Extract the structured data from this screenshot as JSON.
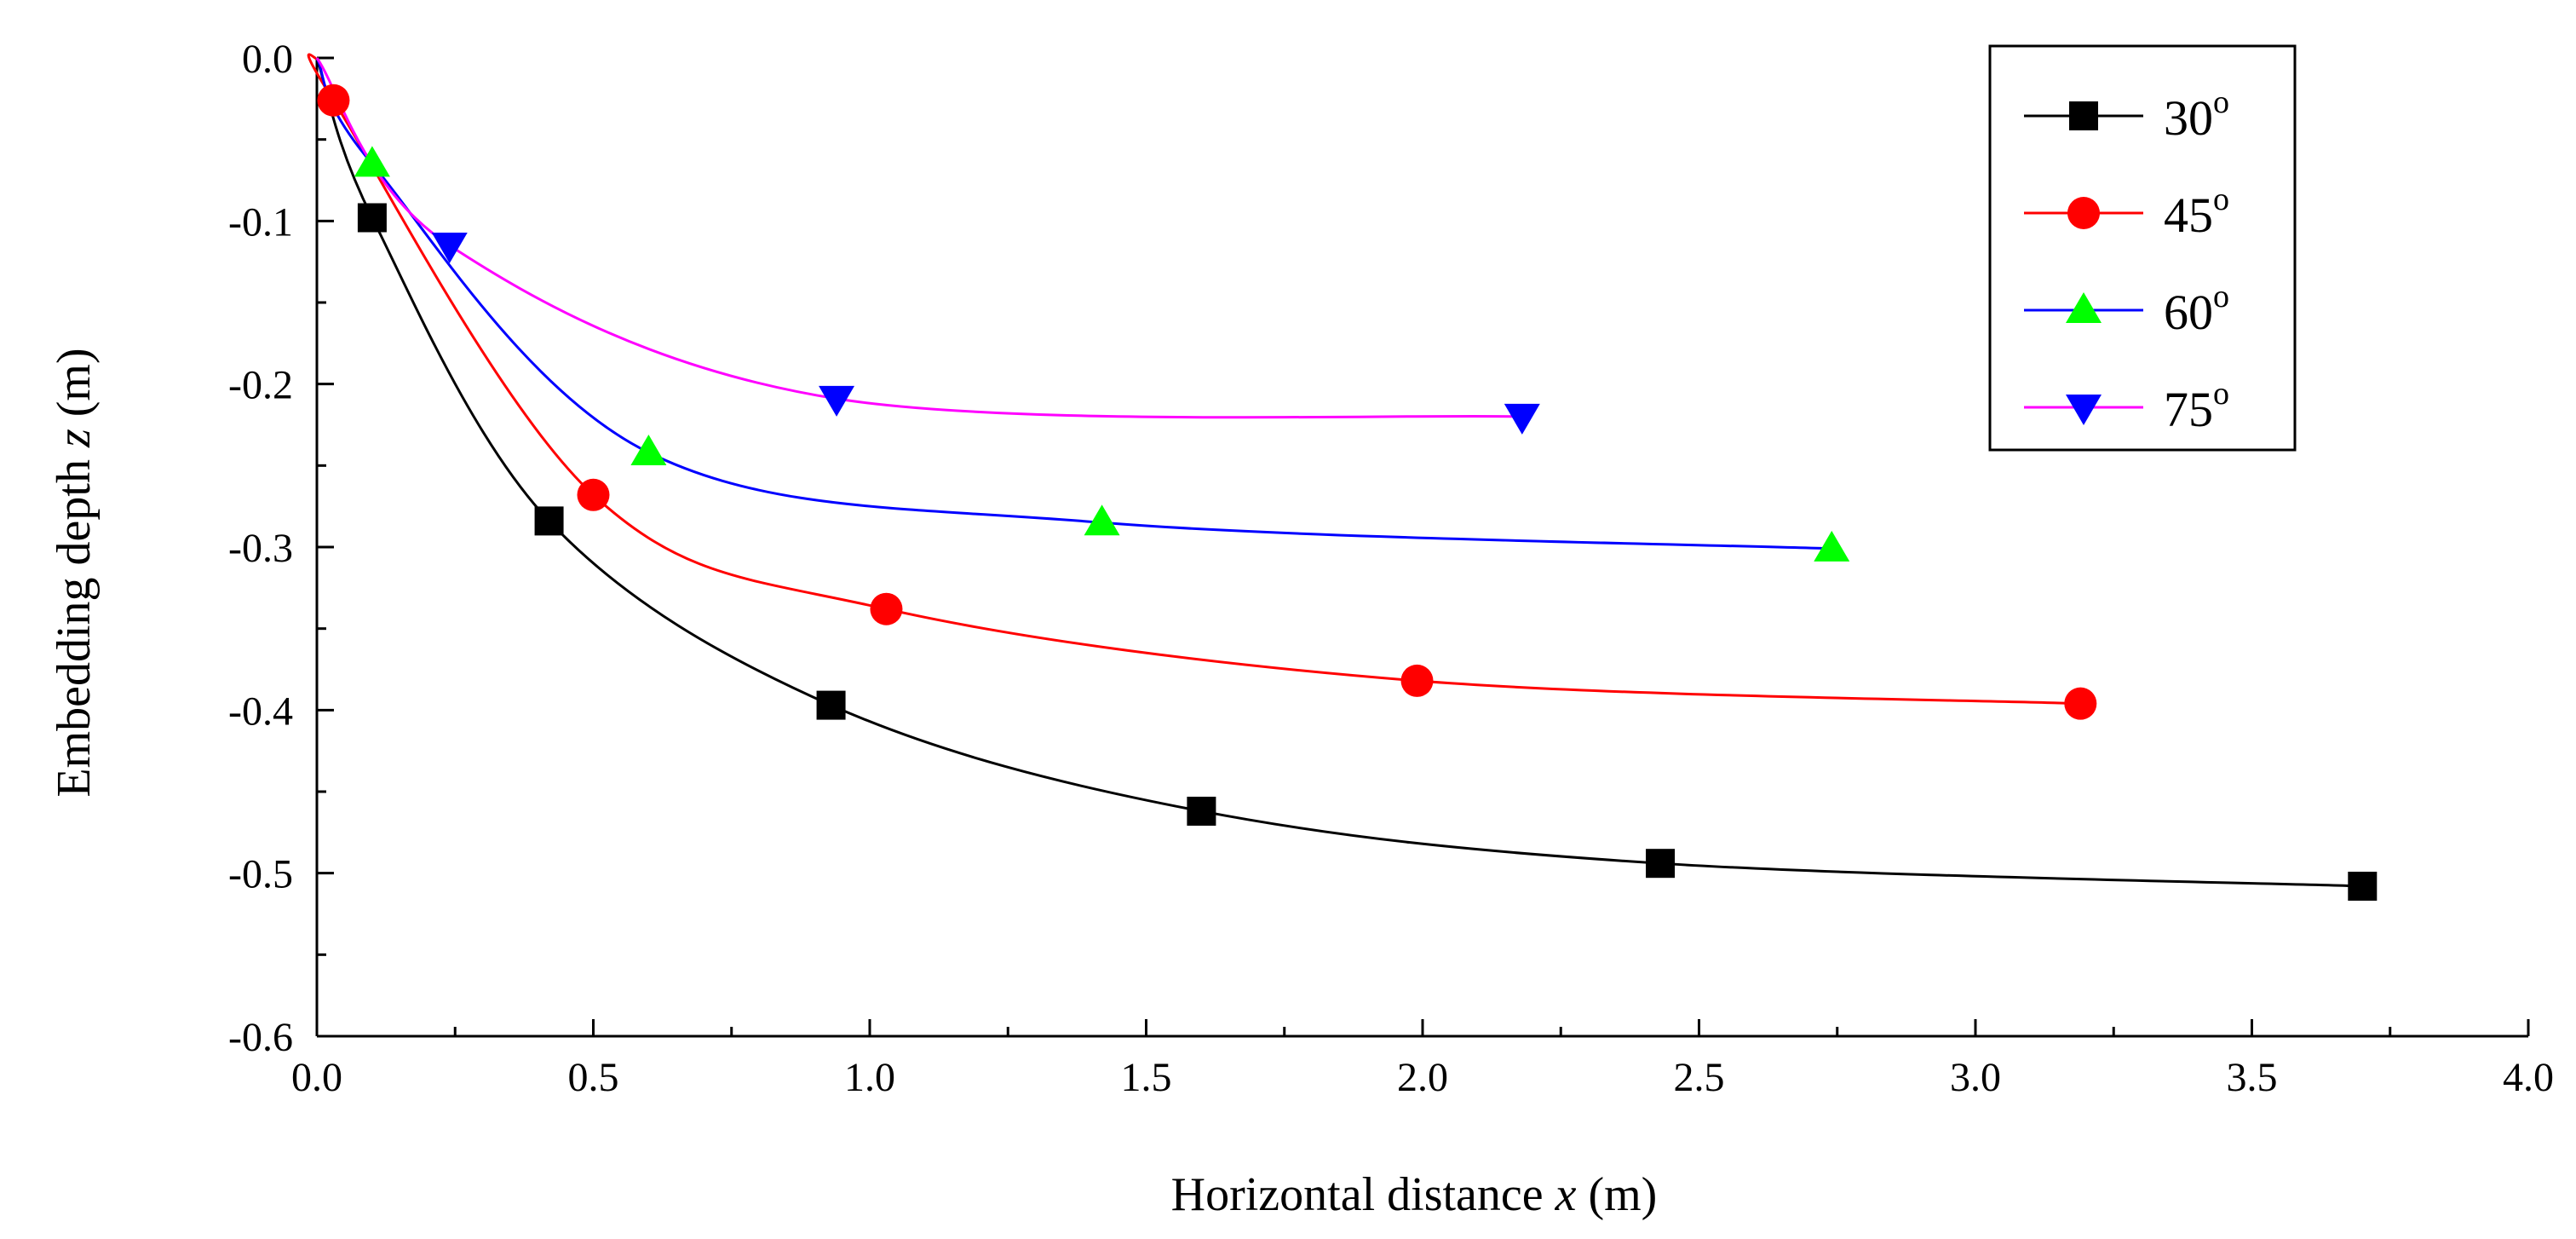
{
  "chart_data": {
    "type": "line",
    "xlabel": {
      "prefix": "Horizontal distance ",
      "var": "x",
      "suffix": " (m)"
    },
    "ylabel": {
      "prefix": "Embedding depth ",
      "var": "z",
      "suffix": " (m)"
    },
    "xlim": [
      0.0,
      4.0
    ],
    "ylim": [
      -0.6,
      0.0
    ],
    "x_ticks": [
      "0.0",
      "0.5",
      "1.0",
      "1.5",
      "2.0",
      "2.5",
      "3.0",
      "3.5",
      "4.0"
    ],
    "y_ticks": [
      "0.0",
      "-0.1",
      "-0.2",
      "-0.3",
      "-0.4",
      "-0.5",
      "-0.6"
    ],
    "legend_position": "top-right",
    "series": [
      {
        "name": "30",
        "unit": "o",
        "color": "#000000",
        "marker": "square",
        "x": [
          0.0,
          0.1,
          0.42,
          0.93,
          1.6,
          2.43,
          3.7
        ],
        "y": [
          0.0,
          -0.098,
          -0.284,
          -0.397,
          -0.462,
          -0.494,
          -0.508
        ]
      },
      {
        "name": "45",
        "unit": "o",
        "color": "#ff0000",
        "marker": "circle",
        "x": [
          0.0,
          0.03,
          0.5,
          1.03,
          1.99,
          3.19
        ],
        "y": [
          0.0,
          -0.026,
          -0.268,
          -0.338,
          -0.382,
          -0.396
        ]
      },
      {
        "name": "60",
        "unit": "o",
        "color": "#0000ff",
        "marker_color": "#00ff00",
        "marker": "triangle-up",
        "x": [
          0.0,
          0.1,
          0.6,
          1.42,
          2.74
        ],
        "y": [
          0.0,
          -0.065,
          -0.242,
          -0.285,
          -0.301
        ]
      },
      {
        "name": "75",
        "unit": "o",
        "color": "#ff00ff",
        "marker_color": "#0000ff",
        "marker": "triangle-down",
        "x": [
          0.0,
          0.24,
          0.94,
          2.18
        ],
        "y": [
          0.0,
          -0.115,
          -0.209,
          -0.22
        ]
      }
    ]
  }
}
